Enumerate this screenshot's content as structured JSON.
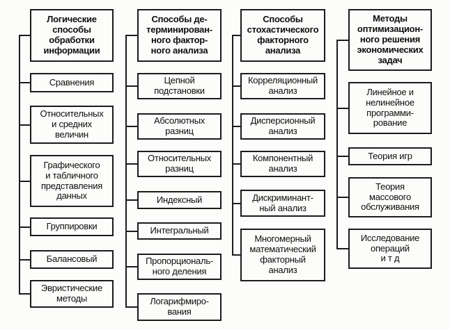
{
  "diagram": {
    "columns": [
      {
        "header": "Логические\nспособы\nобработки\nинформации",
        "items": [
          "Сравнения",
          "Относительных\nи средних\nвеличин",
          "Графического\nи табличного\nпредставления\nданных",
          "Группировки",
          "Балансовый",
          "Эвристические\nметоды"
        ]
      },
      {
        "header": "Способы де-\nтерминирован-\nного фактор-\nного анализа",
        "items": [
          "Цепной\nподстановки",
          "Абсолютных\nразниц",
          "Относительных\nразниц",
          "Индексный",
          "Интегральный",
          "Пропорциональ-\nного деления",
          "Логарифмиро-\nвания"
        ]
      },
      {
        "header": "Способы\nстохастического\nфакторного\nанализа",
        "items": [
          "Корреляционный\nанализ",
          "Дисперсионный\nанализ",
          "Компонентный\nанализ",
          "Дискриминант-\nный анализ",
          "Многомерный\nматематический\nфакторный\nанализ"
        ]
      },
      {
        "header": "Методы\nоптимизацион-\nного решения\nэкономических\nзадач",
        "items": [
          "Линейное и\nнелинейное\nпрограмми-\nрование",
          "Теория игр",
          "Теория\nмассового\nобслуживания",
          "Исследование\nопераций\nи т д"
        ]
      }
    ]
  }
}
